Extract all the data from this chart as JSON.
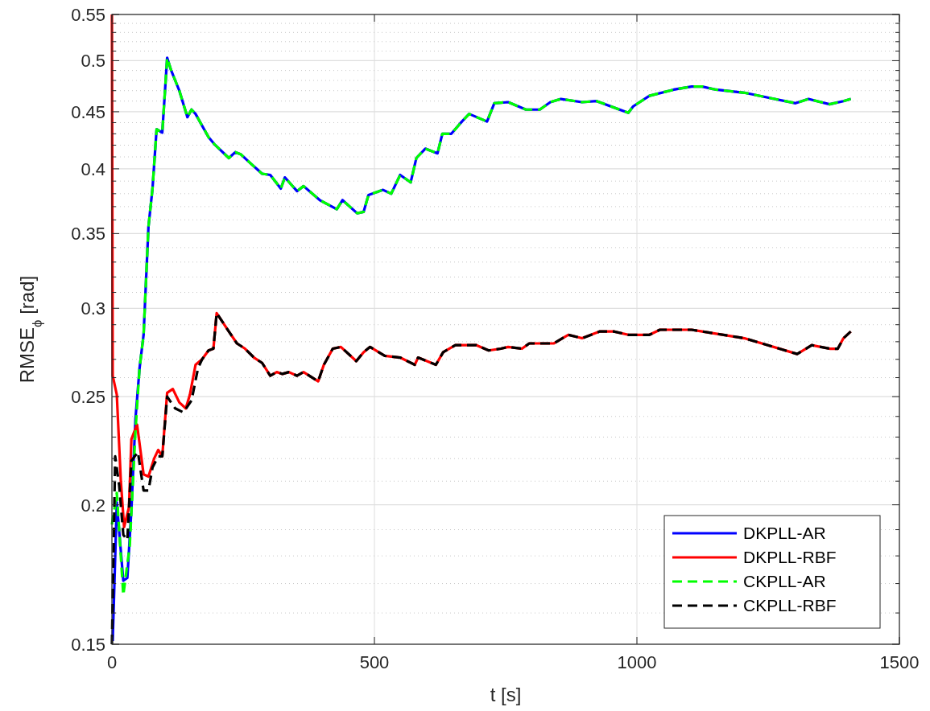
{
  "chart_data": {
    "type": "line",
    "xlabel": "t [s]",
    "ylabel": "RMSE$_{ϕ}$ [rad]",
    "log": "y",
    "grid": true,
    "legend": "bottom right",
    "xlim": [
      0,
      1500
    ],
    "xticks": [
      0,
      500,
      1000,
      1500
    ],
    "ylim": [
      0.15,
      0.55
    ],
    "yticks": [
      0.15,
      {
        "value": 0.16,
        "label": null
      },
      {
        "value": 0.17,
        "label": null
      },
      {
        "value": 0.18,
        "label": null
      },
      {
        "value": 0.19,
        "label": null
      },
      0.2,
      {
        "value": 0.21,
        "label": null
      },
      {
        "value": 0.22,
        "label": null
      },
      {
        "value": 0.23,
        "label": null
      },
      {
        "value": 0.24,
        "label": null
      },
      0.25,
      {
        "value": 0.26,
        "label": null
      },
      {
        "value": 0.27,
        "label": null
      },
      {
        "value": 0.28,
        "label": null
      },
      {
        "value": 0.29,
        "label": null
      },
      0.3,
      {
        "value": 0.31,
        "label": null
      },
      {
        "value": 0.32,
        "label": null
      },
      {
        "value": 0.33,
        "label": null
      },
      {
        "value": 0.34,
        "label": null
      },
      0.35,
      {
        "value": 0.36,
        "label": null
      },
      {
        "value": 0.37,
        "label": null
      },
      {
        "value": 0.38,
        "label": null
      },
      {
        "value": 0.39,
        "label": null
      },
      0.4,
      {
        "value": 0.41,
        "label": null
      },
      {
        "value": 0.42,
        "label": null
      },
      {
        "value": 0.43,
        "label": null
      },
      {
        "value": 0.44,
        "label": null
      },
      0.45,
      {
        "value": 0.46,
        "label": null
      },
      {
        "value": 0.47,
        "label": null
      },
      {
        "value": 0.48,
        "label": null
      },
      {
        "value": 0.49,
        "label": null
      },
      0.5,
      {
        "value": 0.51,
        "label": null
      },
      {
        "value": 0.52,
        "label": null
      },
      {
        "value": 0.53,
        "label": null
      },
      {
        "value": 0.54,
        "label": null
      },
      0.55
    ],
    "series": [
      {
        "name": "DKPLL-AR",
        "color": "#0000ff",
        "line_style": "solid",
        "x": [
          1.5,
          9.3,
          21.7,
          29.4,
          37.1,
          44.9,
          52.6,
          60.3,
          69.6,
          77.3,
          85.1,
          95.9,
          105.2,
          112.9,
          128.4,
          143.8,
          151.6,
          159.3,
          184,
          194.9,
          222.7,
          235.1,
          245.9,
          262.9,
          286.1,
          301.6,
          321.7,
          329.4,
          352.6,
          365,
          395.9,
          428.4,
          439.2,
          467.1,
          479.4,
          488.7,
          516.5,
          532,
          549,
          569.1,
          579.9,
          597,
          620.2,
          629.4,
          646.5,
          666.6,
          680.5,
          714.5,
          728.4,
          754.7,
          788.7,
          815,
          835.1,
          855.2,
          895.5,
          923.3,
          983.6,
          992.9,
          1023.8,
          1070.2,
          1104.2,
          1124.3,
          1150.6,
          1204.8,
          1252.7,
          1302.2,
          1326.9,
          1367.1,
          1393.4,
          1407.4
        ],
        "values": [
          0.151,
          0.201,
          0.171,
          0.172,
          0.198,
          0.239,
          0.265,
          0.284,
          0.355,
          0.384,
          0.434,
          0.431,
          0.503,
          0.49,
          0.47,
          0.445,
          0.452,
          0.448,
          0.427,
          0.421,
          0.409,
          0.414,
          0.412,
          0.405,
          0.396,
          0.395,
          0.384,
          0.393,
          0.382,
          0.386,
          0.375,
          0.368,
          0.375,
          0.365,
          0.366,
          0.379,
          0.383,
          0.38,
          0.395,
          0.389,
          0.409,
          0.417,
          0.413,
          0.43,
          0.43,
          0.441,
          0.448,
          0.441,
          0.458,
          0.459,
          0.452,
          0.452,
          0.459,
          0.462,
          0.459,
          0.46,
          0.449,
          0.455,
          0.465,
          0.471,
          0.474,
          0.474,
          0.471,
          0.468,
          0.463,
          0.458,
          0.462,
          0.457,
          0.46,
          0.462
        ]
      },
      {
        "name": "DKPLL-RBF",
        "color": "#ff0000",
        "line_style": "solid",
        "x": [
          0,
          1.5,
          9.3,
          17,
          23.2,
          32.5,
          37.1,
          47.9,
          60.3,
          69.6,
          80.4,
          88.2,
          95.9,
          105.2,
          116,
          128.4,
          140.7,
          148.5,
          159.3,
          171.7,
          184,
          193.3,
          199.5,
          222.7,
          238.2,
          253.6,
          270.6,
          286.1,
          301.6,
          314,
          324.8,
          337.1,
          352.6,
          365,
          392.8,
          403.7,
          420.7,
          436.1,
          465.5,
          479.4,
          491.8,
          519.6,
          549,
          576.9,
          583.1,
          617.1,
          631,
          654.2,
          694.4,
          717.6,
          740.8,
          754.7,
          781,
          794.9,
          841.3,
          869.2,
          895.5,
          929.5,
          955.8,
          983.6,
          1023.8,
          1043.9,
          1104.2,
          1124.3,
          1204.8,
          1305.3,
          1333.1,
          1367.1,
          1382.6,
          1393.4,
          1407.4
        ],
        "values": [
          0.55,
          0.261,
          0.251,
          0.21,
          0.191,
          0.199,
          0.229,
          0.236,
          0.213,
          0.212,
          0.22,
          0.224,
          0.221,
          0.252,
          0.254,
          0.247,
          0.244,
          0.251,
          0.267,
          0.27,
          0.275,
          0.276,
          0.297,
          0.286,
          0.279,
          0.276,
          0.271,
          0.268,
          0.261,
          0.263,
          0.262,
          0.263,
          0.261,
          0.263,
          0.258,
          0.267,
          0.276,
          0.277,
          0.269,
          0.274,
          0.277,
          0.272,
          0.271,
          0.267,
          0.271,
          0.267,
          0.274,
          0.278,
          0.278,
          0.275,
          0.276,
          0.277,
          0.276,
          0.279,
          0.279,
          0.284,
          0.282,
          0.286,
          0.286,
          0.284,
          0.284,
          0.287,
          0.287,
          0.286,
          0.282,
          0.273,
          0.278,
          0.276,
          0.276,
          0.282,
          0.286
        ]
      },
      {
        "name": "CKPLL-AR",
        "color": "#00ff00",
        "line_style": "dashed",
        "x": [
          0,
          9.3,
          21.7,
          34,
          44.9,
          52.6,
          60.3,
          69.6,
          77.3,
          85.1,
          95.9,
          105.2,
          112.9,
          128.4,
          143.8,
          151.6,
          159.3,
          184,
          194.9,
          222.7,
          235.1,
          245.9,
          262.9,
          286.1,
          301.6,
          321.7,
          329.4,
          352.6,
          365,
          395.9,
          428.4,
          439.2,
          467.1,
          479.4,
          488.7,
          516.5,
          532,
          549,
          569.1,
          579.9,
          597,
          620.2,
          629.4,
          646.5,
          666.6,
          680.5,
          714.5,
          728.4,
          754.7,
          788.7,
          815,
          835.1,
          855.2,
          895.5,
          923.3,
          983.6,
          992.9,
          1023.8,
          1070.2,
          1104.2,
          1124.3,
          1150.6,
          1204.8,
          1252.7,
          1302.2,
          1326.9,
          1367.1,
          1393.4,
          1407.4
        ],
        "values": [
          0.192,
          0.205,
          0.166,
          0.184,
          0.233,
          0.265,
          0.284,
          0.355,
          0.384,
          0.434,
          0.431,
          0.503,
          0.49,
          0.47,
          0.445,
          0.452,
          0.448,
          0.427,
          0.421,
          0.409,
          0.414,
          0.412,
          0.405,
          0.396,
          0.395,
          0.384,
          0.393,
          0.382,
          0.386,
          0.375,
          0.368,
          0.375,
          0.365,
          0.366,
          0.379,
          0.383,
          0.38,
          0.395,
          0.389,
          0.409,
          0.417,
          0.413,
          0.43,
          0.43,
          0.441,
          0.448,
          0.441,
          0.458,
          0.459,
          0.452,
          0.452,
          0.459,
          0.462,
          0.459,
          0.46,
          0.449,
          0.455,
          0.465,
          0.471,
          0.474,
          0.474,
          0.471,
          0.468,
          0.463,
          0.458,
          0.462,
          0.457,
          0.46,
          0.462
        ]
      },
      {
        "name": "CKPLL-RBF",
        "color": "#000000",
        "line_style": "dashed",
        "x": [
          0,
          6.2,
          13.9,
          21.7,
          29.4,
          37.1,
          49.5,
          60.3,
          69.6,
          77.3,
          88.2,
          95.9,
          105.2,
          120.6,
          136.1,
          151.6,
          163.9,
          171.7,
          184,
          193.3,
          199.5,
          222.7,
          238.2,
          253.6,
          270.6,
          286.1,
          301.6,
          314,
          324.8,
          337.1,
          352.6,
          365,
          392.8,
          403.7,
          420.7,
          436.1,
          465.5,
          479.4,
          491.8,
          519.6,
          549,
          576.9,
          583.1,
          617.1,
          631,
          654.2,
          694.4,
          717.6,
          740.8,
          754.7,
          781,
          794.9,
          841.3,
          869.2,
          895.5,
          929.5,
          955.8,
          983.6,
          1023.8,
          1043.9,
          1104.2,
          1124.3,
          1204.8,
          1305.3,
          1333.1,
          1367.1,
          1382.6,
          1393.4,
          1407.4
        ],
        "values": [
          0.15,
          0.221,
          0.208,
          0.188,
          0.186,
          0.219,
          0.223,
          0.206,
          0.206,
          0.216,
          0.221,
          0.221,
          0.25,
          0.244,
          0.242,
          0.248,
          0.265,
          0.27,
          0.275,
          0.276,
          0.297,
          0.286,
          0.279,
          0.276,
          0.271,
          0.268,
          0.261,
          0.263,
          0.262,
          0.263,
          0.261,
          0.263,
          0.258,
          0.267,
          0.276,
          0.277,
          0.269,
          0.274,
          0.277,
          0.272,
          0.271,
          0.267,
          0.271,
          0.267,
          0.274,
          0.278,
          0.278,
          0.275,
          0.276,
          0.277,
          0.276,
          0.279,
          0.279,
          0.284,
          0.282,
          0.286,
          0.286,
          0.284,
          0.284,
          0.287,
          0.287,
          0.286,
          0.282,
          0.273,
          0.278,
          0.276,
          0.276,
          0.282,
          0.286
        ]
      }
    ]
  }
}
